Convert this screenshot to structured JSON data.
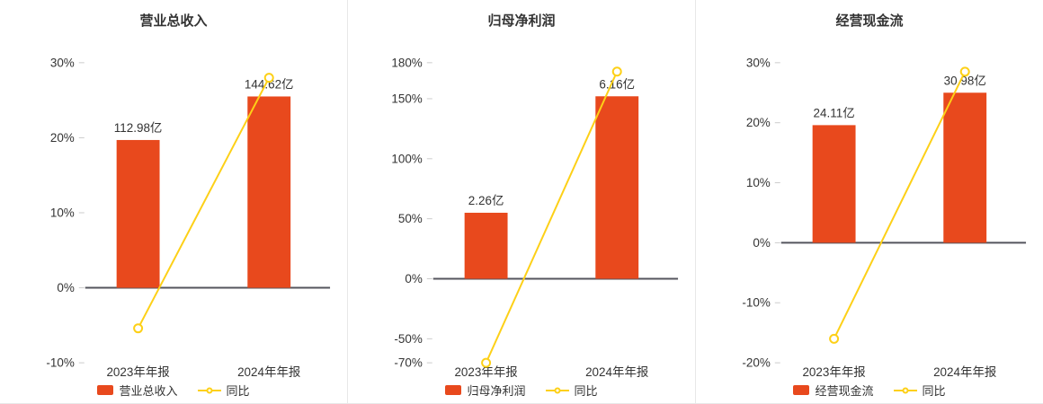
{
  "colors": {
    "bar": "#e8491d",
    "line": "#fdd017",
    "axis_line": "#54555d",
    "tick_mark": "#cccccc",
    "text": "#333333",
    "divider": "#e8e8e8",
    "background": "#ffffff"
  },
  "chart_data": [
    {
      "type": "bar",
      "title": "营业总收入",
      "categories": [
        "2023年年报",
        "2024年年报"
      ],
      "bar_series": {
        "name": "营业总收入",
        "unit": "亿",
        "values": [
          112.98,
          144.62
        ],
        "labels": [
          "112.98亿",
          "144.62亿"
        ],
        "plot_heights_pct": [
          19.7,
          25.5
        ]
      },
      "line_series": {
        "name": "同比",
        "values_pct": [
          -5.4,
          28.0
        ]
      },
      "ylim": [
        -10,
        30
      ],
      "y_ticks": [
        -10,
        0,
        10,
        20,
        30
      ],
      "y_tick_labels": [
        "-10%",
        "0%",
        "10%",
        "20%",
        "30%"
      ],
      "legend": [
        "营业总收入",
        "同比"
      ],
      "grid": false,
      "legend_position": "bottom"
    },
    {
      "type": "bar",
      "title": "归母净利润",
      "categories": [
        "2023年年报",
        "2024年年报"
      ],
      "bar_series": {
        "name": "归母净利润",
        "unit": "亿",
        "values": [
          2.26,
          6.16
        ],
        "labels": [
          "2.26亿",
          "6.16亿"
        ],
        "plot_heights_pct": [
          55,
          152
        ]
      },
      "line_series": {
        "name": "同比",
        "values_pct": [
          -70,
          172.6
        ]
      },
      "ylim": [
        -70,
        180
      ],
      "y_ticks": [
        -70,
        -50,
        0,
        50,
        100,
        150,
        180
      ],
      "y_tick_labels": [
        "-70%",
        "-50%",
        "0%",
        "50%",
        "100%",
        "150%",
        "180%"
      ],
      "legend": [
        "归母净利润",
        "同比"
      ],
      "grid": false,
      "legend_position": "bottom"
    },
    {
      "type": "bar",
      "title": "经营现金流",
      "categories": [
        "2023年年报",
        "2024年年报"
      ],
      "bar_series": {
        "name": "经营现金流",
        "unit": "亿",
        "values": [
          24.11,
          30.98
        ],
        "labels": [
          "24.11亿",
          "30.98亿"
        ],
        "plot_heights_pct": [
          19.6,
          25.0
        ]
      },
      "line_series": {
        "name": "同比",
        "values_pct": [
          -16.0,
          28.5
        ]
      },
      "ylim": [
        -20,
        30
      ],
      "y_ticks": [
        -20,
        -10,
        0,
        10,
        20,
        30
      ],
      "y_tick_labels": [
        "-20%",
        "-10%",
        "0%",
        "10%",
        "20%",
        "30%"
      ],
      "legend": [
        "经营现金流",
        "同比"
      ],
      "grid": false,
      "legend_position": "bottom"
    }
  ]
}
